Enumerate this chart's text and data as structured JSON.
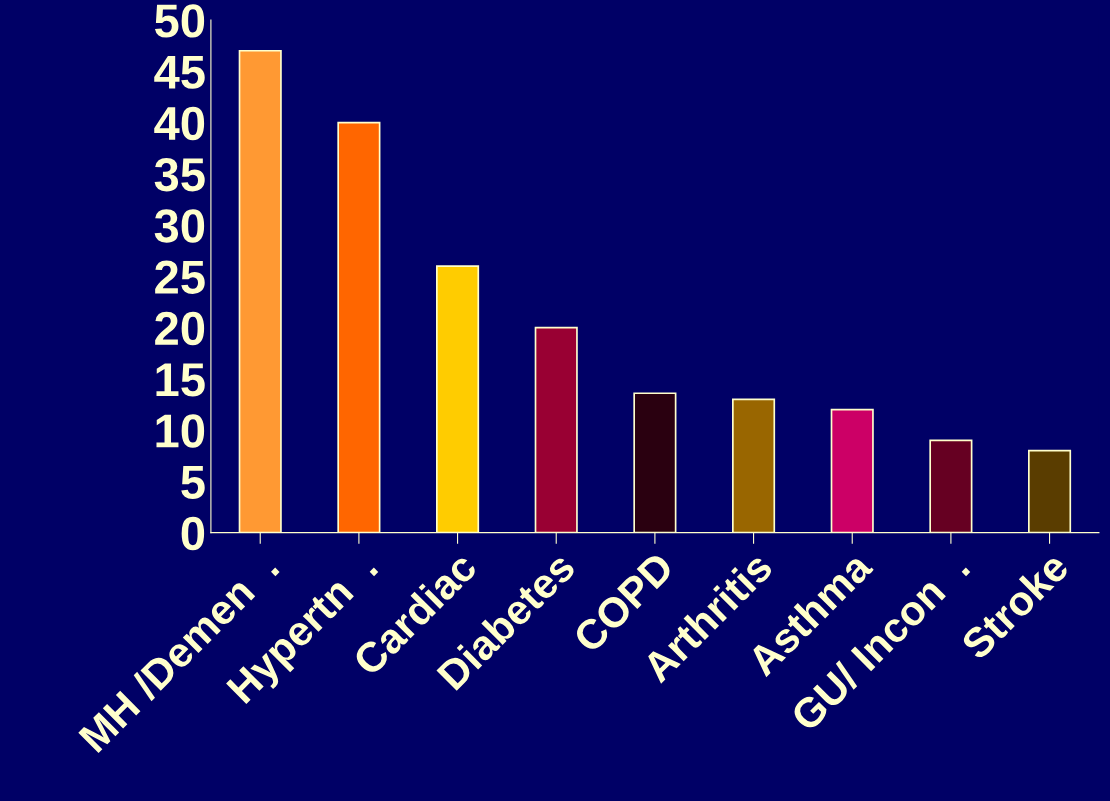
{
  "chart_data": {
    "type": "bar",
    "categories": [
      "MH /Demen  .",
      "Hypertn  .",
      "Cardiac",
      "Diabetes",
      "COPD",
      "Arthritis",
      "Asthma",
      "GU/ Incon  .",
      "Stroke"
    ],
    "values": [
      47,
      40,
      26,
      20,
      13.6,
      13,
      12,
      9,
      8
    ],
    "colors": [
      "#ff9933",
      "#ff6600",
      "#ffcc00",
      "#990033",
      "#2a0010",
      "#996600",
      "#cc0066",
      "#660022",
      "#5a3d00"
    ],
    "ylim": [
      0,
      50
    ],
    "yticks": [
      0,
      5,
      10,
      15,
      20,
      25,
      30,
      35,
      40,
      45,
      50
    ],
    "grid": false,
    "legend": false
  }
}
